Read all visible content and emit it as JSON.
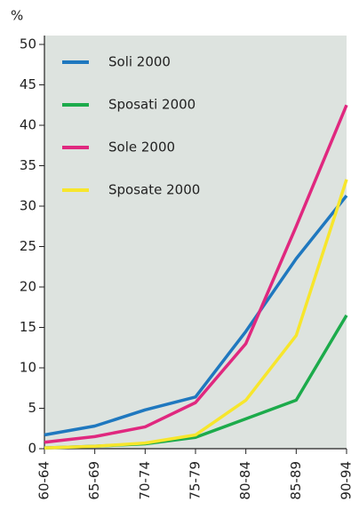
{
  "chart_data": {
    "type": "line",
    "y_label": "%",
    "categories": [
      "60-64",
      "65-69",
      "70-74",
      "75-79",
      "80-84",
      "85-89",
      "90-94"
    ],
    "series": [
      {
        "name": "Soli 2000",
        "color": "#1f78bf",
        "values": [
          1.7,
          2.8,
          4.8,
          6.4,
          14.5,
          23.5,
          31.3
        ]
      },
      {
        "name": "Sposati 2000",
        "color": "#1cab4b",
        "values": [
          0.1,
          0.3,
          0.6,
          1.4,
          3.7,
          6.0,
          16.5
        ]
      },
      {
        "name": "Sole 2000",
        "color": "#e0287f",
        "values": [
          0.8,
          1.5,
          2.7,
          5.7,
          13.0,
          27.5,
          42.5
        ]
      },
      {
        "name": "Sposate 2000",
        "color": "#f7e62c",
        "values": [
          0.1,
          0.3,
          0.7,
          1.7,
          6.0,
          14.0,
          33.3
        ]
      }
    ],
    "ylim": [
      0,
      50
    ],
    "yticks": [
      0,
      5,
      10,
      15,
      20,
      25,
      30,
      35,
      40,
      45,
      50
    ],
    "background": "#dde3df",
    "legend": "top-left"
  }
}
